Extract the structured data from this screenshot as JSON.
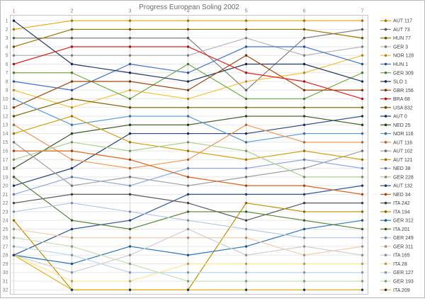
{
  "chart_data": {
    "type": "line",
    "title": "Progress European Soling 2002",
    "x_axis": {
      "position": "top",
      "ticks": [
        "1",
        "2",
        "3",
        "4",
        "5",
        "6",
        "7"
      ],
      "label_color": "#7f7f7f"
    },
    "y_axis": {
      "min": 1,
      "max": 32,
      "inverted": true,
      "ticks": [
        "1",
        "2",
        "3",
        "4",
        "5",
        "6",
        "7",
        "8",
        "9",
        "10",
        "11",
        "12",
        "13",
        "14",
        "15",
        "16",
        "17",
        "18",
        "19",
        "20",
        "21",
        "22",
        "23",
        "24",
        "25",
        "26",
        "27",
        "28",
        "29",
        "30",
        "31",
        "32"
      ],
      "label_color": "#7f7f7f"
    },
    "legend_position": "right",
    "grid": {
      "horizontal": "#e8e8e8",
      "vertical": "#d9d9d9",
      "border": "#c6c6c6"
    },
    "title_color": "#6a6a6a",
    "legend_text_color": "#404040",
    "series": [
      {
        "name": "AUT 117",
        "color": "#e8ab12",
        "ranks": [
          2,
          1,
          1,
          1,
          1,
          1,
          1
        ]
      },
      {
        "name": "AUT 73",
        "color": "#808080",
        "ranks": [
          3,
          3,
          3,
          3,
          9,
          3,
          2
        ]
      },
      {
        "name": "HUN 77",
        "color": "#997300",
        "ranks": [
          4,
          2,
          2,
          2,
          2,
          2,
          3
        ]
      },
      {
        "name": "GER 3",
        "color": "#b7b7b7",
        "ranks": [
          5,
          5,
          5,
          5,
          3,
          5,
          4
        ]
      },
      {
        "name": "NOR 128",
        "color": "#f5c242",
        "ranks": [
          9,
          11,
          9,
          10,
          8,
          7,
          5
        ]
      },
      {
        "name": "HUN 1",
        "color": "#4472c4",
        "ranks": [
          8,
          9,
          6,
          7,
          4,
          4,
          6
        ]
      },
      {
        "name": "GER 309",
        "color": "#70ad47",
        "ranks": [
          7,
          7,
          10,
          6,
          10,
          10,
          7
        ]
      },
      {
        "name": "SLO 1",
        "color": "#1f3864",
        "ranks": [
          1,
          6,
          7,
          8,
          6,
          6,
          8
        ]
      },
      {
        "name": "GBR 156",
        "color": "#9e480e",
        "ranks": [
          11,
          8,
          8,
          9,
          5,
          9,
          9
        ]
      },
      {
        "name": "BRA 68",
        "color": "#e02020",
        "ranks": [
          6,
          4,
          4,
          4,
          7,
          8,
          10
        ]
      },
      {
        "name": "USA 832",
        "color": "#7f6000",
        "ranks": [
          12,
          10,
          11,
          11,
          11,
          11,
          11
        ]
      },
      {
        "name": "AUT 0",
        "color": "#264478",
        "ranks": [
          20,
          18,
          14,
          14,
          14,
          13,
          12
        ]
      },
      {
        "name": "NED 25",
        "color": "#385723",
        "ranks": [
          18,
          14,
          13,
          13,
          12,
          12,
          13
        ]
      },
      {
        "name": "NOR 116",
        "color": "#5b9bd5",
        "ranks": [
          10,
          13,
          12,
          12,
          15,
          14,
          14
        ]
      },
      {
        "name": "AUT 116",
        "color": "#f1975a",
        "ranks": [
          13,
          17,
          18,
          17,
          13,
          15,
          15
        ]
      },
      {
        "name": "AUT 102",
        "color": "#a0a0a0",
        "ranks": [
          15,
          20,
          19,
          20,
          19,
          18,
          16
        ]
      },
      {
        "name": "AUT 121",
        "color": "#d4a017",
        "ranks": [
          14,
          12,
          15,
          16,
          17,
          16,
          17
        ]
      },
      {
        "name": "NED 38",
        "color": "#8faadc",
        "ranks": [
          21,
          19,
          20,
          18,
          18,
          17,
          18
        ]
      },
      {
        "name": "GER 228",
        "color": "#a9d18e",
        "ranks": [
          17,
          15,
          16,
          15,
          16,
          19,
          19
        ]
      },
      {
        "name": "AUT 132",
        "color": "#2f5597",
        "ranks": [
          28,
          25,
          24,
          21,
          21,
          21,
          20
        ]
      },
      {
        "name": "NED 34",
        "color": "#d9641e",
        "ranks": [
          16,
          16,
          17,
          19,
          20,
          20,
          21
        ]
      },
      {
        "name": "ITA 242",
        "color": "#595959",
        "ranks": [
          22,
          21,
          21,
          22,
          24,
          22,
          22
        ]
      },
      {
        "name": "ITA 194",
        "color": "#bf9000",
        "ranks": [
          24,
          32,
          32,
          32,
          22,
          23,
          23
        ]
      },
      {
        "name": "GER 312",
        "color": "#2e75b6",
        "ranks": [
          28,
          29,
          27,
          28,
          27,
          25,
          24
        ]
      },
      {
        "name": "ITA 201",
        "color": "#538135",
        "ranks": [
          19,
          24,
          25,
          23,
          23,
          24,
          25
        ]
      },
      {
        "name": "GER 249",
        "color": "#b4c7e7",
        "ranks": [
          23,
          22,
          23,
          24,
          25,
          26,
          26
        ]
      },
      {
        "name": "GER 311",
        "color": "#f8cbad",
        "ranks": [
          25,
          26,
          26,
          26,
          26,
          28,
          27
        ]
      },
      {
        "name": "ITA 165",
        "color": "#d0cece",
        "ranks": [
          28,
          30,
          28,
          25,
          28,
          27,
          28
        ]
      },
      {
        "name": "ITA 28",
        "color": "#ffe699",
        "ranks": [
          28,
          31,
          31,
          29,
          29,
          29,
          29
        ]
      },
      {
        "name": "GER 127",
        "color": "#bdd7ee",
        "ranks": [
          27,
          28,
          30,
          30,
          30,
          30,
          30
        ]
      },
      {
        "name": "GER 193",
        "color": "#c5e0b4",
        "ranks": [
          26,
          27,
          29,
          31,
          31,
          31,
          31
        ]
      },
      {
        "name": "ITA 209",
        "color": "#e3b320",
        "marker": "#1f3864",
        "ranks": [
          28,
          32,
          32,
          32,
          32,
          32,
          32
        ]
      }
    ]
  }
}
